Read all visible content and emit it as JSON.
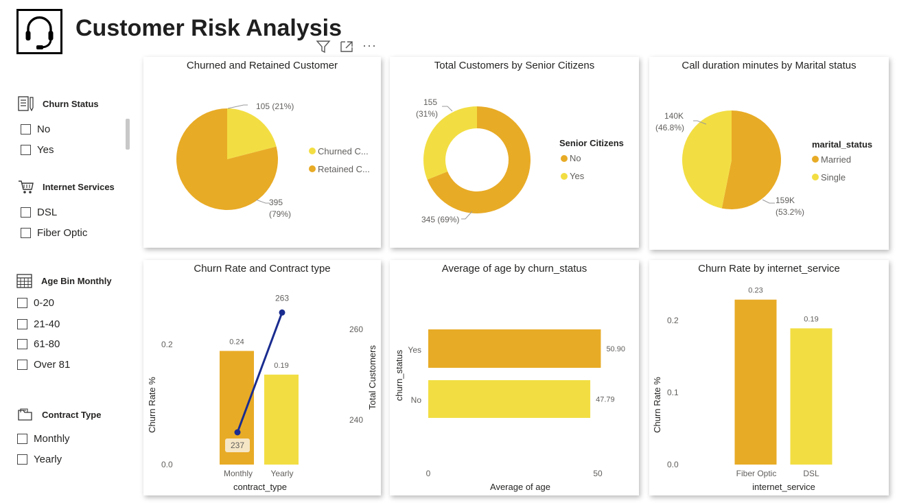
{
  "header": {
    "title": "Customer Risk Analysis",
    "logo_icon": "headset-icon"
  },
  "toolbar": {
    "filter_icon": "filter-icon",
    "focus_icon": "focus-mode-icon",
    "more_label": "···"
  },
  "slicers": [
    {
      "title": "Churn Status",
      "icon": "list-pen-icon",
      "options": [
        "No",
        "Yes"
      ]
    },
    {
      "title": "Internet Services",
      "icon": "cart-icon",
      "options": [
        "DSL",
        "Fiber Optic"
      ]
    },
    {
      "title": "Age Bin Monthly",
      "icon": "calendar-icon",
      "options": [
        "0-20",
        "21-40",
        "61-80",
        "Over 81"
      ]
    },
    {
      "title": "Contract Type",
      "icon": "folder-icon",
      "options": [
        "Monthly",
        "Yearly"
      ]
    }
  ],
  "colors": {
    "dark_gold": "#E8AB26",
    "light_yellow": "#F2DE43",
    "line_navy": "#1A2C8F",
    "text": "#252423",
    "label": "#605E5C"
  },
  "chart_data": [
    {
      "type": "pie",
      "title": "Churned and Retained Customer",
      "slices": [
        {
          "name": "Churned C...",
          "value": 105,
          "label": "105 (21%)",
          "color": "#F2DE43"
        },
        {
          "name": "Retained C...",
          "value": 395,
          "label_value": "395",
          "label_pct": "(79%)",
          "color": "#E8AB26"
        }
      ],
      "legend": "right"
    },
    {
      "type": "pie",
      "variant": "donut",
      "title": "Total Customers by Senior Citizens",
      "legend_title": "Senior Citizens",
      "slices": [
        {
          "name": "No",
          "value": 345,
          "label": "345 (69%)",
          "color": "#E8AB26"
        },
        {
          "name": "Yes",
          "value": 155,
          "label_value": "155",
          "label_pct": "(31%)",
          "color": "#F2DE43"
        }
      ],
      "legend": "right"
    },
    {
      "type": "pie",
      "title": "Call duration minutes by Marital status",
      "legend_title": "marital_status",
      "slices": [
        {
          "name": "Married",
          "value": 159000,
          "label_value": "159K",
          "label_pct": "(53.2%)",
          "color": "#E8AB26"
        },
        {
          "name": "Single",
          "value": 140000,
          "label_value": "140K",
          "label_pct": "(46.8%)",
          "color": "#F2DE43"
        }
      ],
      "legend": "right"
    },
    {
      "type": "bar",
      "variant": "combo-bar-line",
      "title": "Churn Rate and Contract type",
      "categories": [
        "Monthly",
        "Yearly"
      ],
      "series": [
        {
          "kind": "bar",
          "values": [
            0.24,
            0.19
          ],
          "labels": [
            "0.24",
            "0.19"
          ],
          "colors": [
            "#E8AB26",
            "#F2DE43"
          ]
        },
        {
          "kind": "line",
          "values": [
            237,
            263
          ],
          "labels": [
            "237",
            "263"
          ],
          "color": "#1A2C8F"
        }
      ],
      "xlabel": "contract_type",
      "ylabel": "Churn Rate %",
      "y2label": "Total Customers",
      "ylim": [
        0,
        0.3
      ],
      "yticks": [
        "0.0",
        "0.2"
      ],
      "y2lim": [
        230,
        265
      ],
      "y2ticks": [
        "240",
        "260"
      ]
    },
    {
      "type": "bar",
      "orientation": "horizontal",
      "title": "Average of age by churn_status",
      "categories": [
        "Yes",
        "No"
      ],
      "values": [
        50.9,
        47.79
      ],
      "labels": [
        "50.90",
        "47.79"
      ],
      "colors": [
        "#E8AB26",
        "#F2DE43"
      ],
      "xlabel": "Average of age",
      "ylabel": "churn_status",
      "xlim": [
        0,
        55
      ],
      "xticks": [
        "0",
        "50"
      ]
    },
    {
      "type": "bar",
      "title": "Churn Rate by internet_service",
      "categories": [
        "Fiber Optic",
        "DSL"
      ],
      "values": [
        0.23,
        0.19
      ],
      "labels": [
        "0.23",
        "0.19"
      ],
      "colors": [
        "#E8AB26",
        "#F2DE43"
      ],
      "xlabel": "internet_service",
      "ylabel": "Churn Rate %",
      "ylim": [
        0,
        0.25
      ],
      "yticks": [
        "0.0",
        "0.1",
        "0.2"
      ]
    }
  ]
}
